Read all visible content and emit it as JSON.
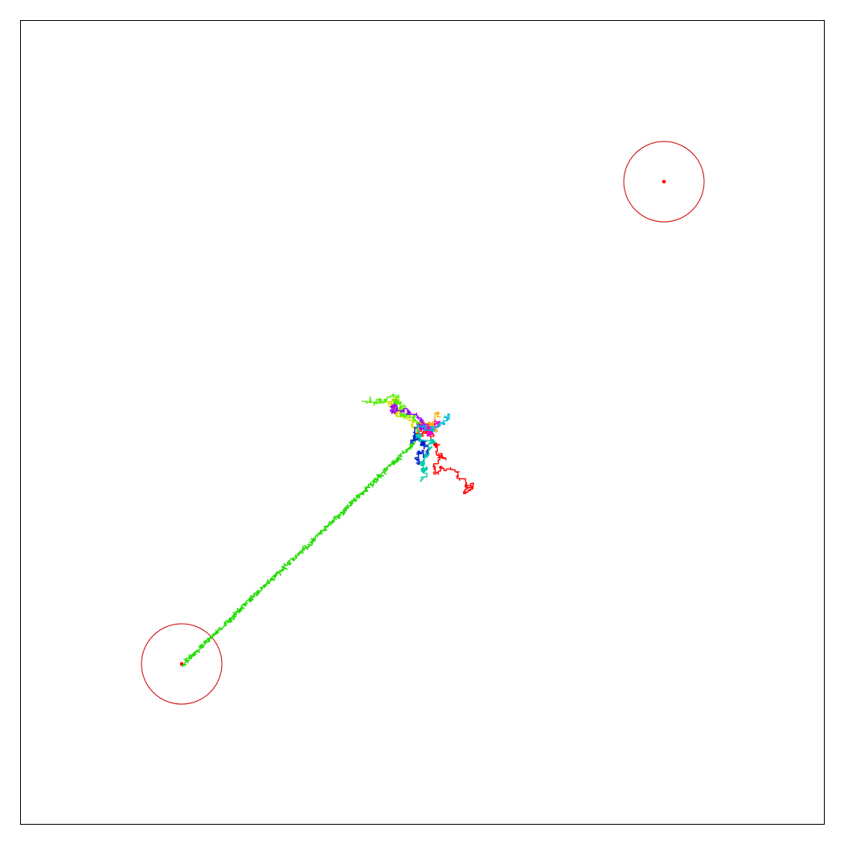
{
  "colors": {
    "background": "#ffffff",
    "frame": "#000000",
    "target_ring": "#cc0000",
    "target_center": "#ff0000"
  },
  "targets": [
    {
      "name": "target-top-right"
    },
    {
      "name": "target-bottom-left"
    }
  ],
  "walks": [
    {
      "name": "walk-green-long",
      "color": "#22dd00"
    },
    {
      "name": "walk-red",
      "color": "#ff0000"
    },
    {
      "name": "walk-orange",
      "color": "#ffaa00"
    },
    {
      "name": "walk-yellow",
      "color": "#dddd00"
    },
    {
      "name": "walk-lime",
      "color": "#55ee00"
    },
    {
      "name": "walk-magenta",
      "color": "#ee00cc"
    },
    {
      "name": "walk-purple",
      "color": "#9900ff"
    },
    {
      "name": "walk-blue",
      "color": "#0022cc"
    },
    {
      "name": "walk-teal",
      "color": "#00ccaa"
    },
    {
      "name": "walk-cyan",
      "color": "#00bbdd"
    }
  ]
}
